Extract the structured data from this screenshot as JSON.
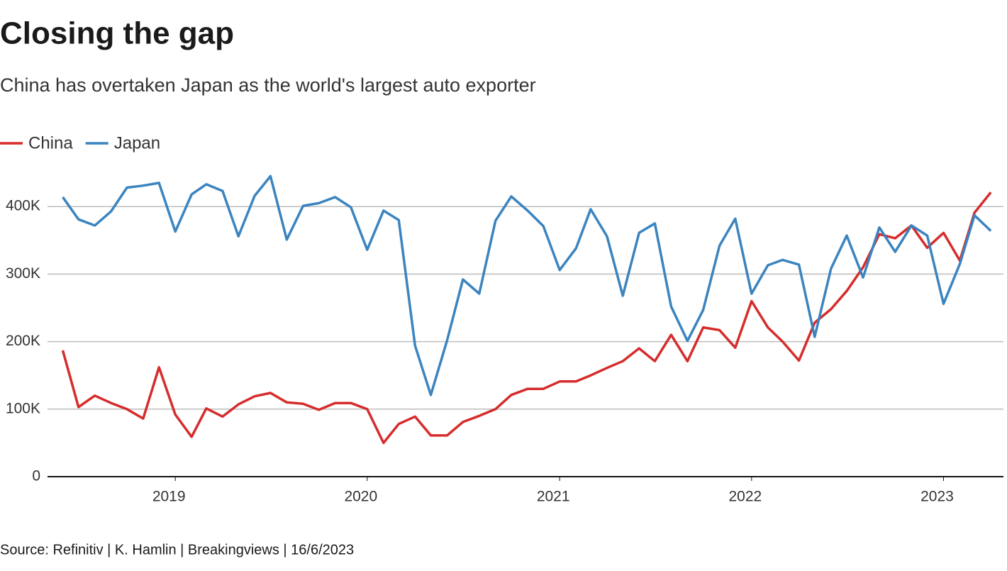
{
  "chart_data": {
    "type": "line",
    "title": "Closing the gap",
    "subtitle": "China has overtaken Japan as the world's largest auto exporter",
    "source": "Source: Refinitiv | K. Hamlin | Breakingviews | 16/6/2023",
    "x": [
      "2018-06",
      "2018-07",
      "2018-08",
      "2018-09",
      "2018-10",
      "2018-11",
      "2018-12",
      "2019-01",
      "2019-02",
      "2019-03",
      "2019-04",
      "2019-05",
      "2019-06",
      "2019-07",
      "2019-08",
      "2019-09",
      "2019-10",
      "2019-11",
      "2019-12",
      "2020-01",
      "2020-02",
      "2020-03",
      "2020-04",
      "2020-05",
      "2020-06",
      "2020-07",
      "2020-08",
      "2020-09",
      "2020-10",
      "2020-11",
      "2020-12",
      "2021-01",
      "2021-02",
      "2021-03",
      "2021-04",
      "2021-05",
      "2021-06",
      "2021-07",
      "2021-08",
      "2021-09",
      "2021-10",
      "2021-11",
      "2021-12",
      "2022-01",
      "2022-02",
      "2022-03",
      "2022-04",
      "2022-05",
      "2022-06",
      "2022-07",
      "2022-08",
      "2022-09",
      "2022-10",
      "2022-11",
      "2022-12",
      "2023-01",
      "2023-02",
      "2023-03",
      "2023-04"
    ],
    "series": [
      {
        "name": "China",
        "color": "#d62c2c",
        "values": [
          187000,
          103000,
          120000,
          109000,
          100000,
          86000,
          162000,
          92000,
          59000,
          101000,
          89000,
          107000,
          119000,
          124000,
          110000,
          108000,
          99000,
          109000,
          109000,
          100000,
          50000,
          78000,
          89000,
          61000,
          61000,
          81000,
          90000,
          100000,
          121000,
          130000,
          130000,
          141000,
          141000,
          150000,
          161000,
          171000,
          190000,
          171000,
          210000,
          171000,
          221000,
          217000,
          191000,
          260000,
          221000,
          200000,
          172000,
          228000,
          248000,
          275000,
          310000,
          359000,
          353000,
          372000,
          339000,
          361000,
          320000,
          391000,
          421000
        ]
      },
      {
        "name": "Japan",
        "color": "#3a84c0",
        "values": [
          414000,
          381000,
          372000,
          393000,
          428000,
          431000,
          435000,
          363000,
          418000,
          433000,
          423000,
          356000,
          416000,
          445000,
          351000,
          401000,
          405000,
          414000,
          399000,
          336000,
          394000,
          380000,
          194000,
          121000,
          202000,
          292000,
          271000,
          379000,
          415000,
          394000,
          371000,
          306000,
          338000,
          396000,
          356000,
          268000,
          361000,
          375000,
          252000,
          201000,
          247000,
          342000,
          382000,
          271000,
          313000,
          321000,
          314000,
          207000,
          308000,
          357000,
          295000,
          369000,
          333000,
          372000,
          357000,
          256000,
          315000,
          387000,
          364000
        ]
      }
    ],
    "xlim": [
      "2018-05-03",
      "2023-04-25"
    ],
    "xticks": [
      {
        "value": "2019-01",
        "label": "2019"
      },
      {
        "value": "2020-01",
        "label": "2020"
      },
      {
        "value": "2021-01",
        "label": "2021"
      },
      {
        "value": "2022-01",
        "label": "2022"
      },
      {
        "value": "2023-01",
        "label": "2023"
      }
    ],
    "ylim": [
      0,
      450000
    ],
    "yticks": [
      0,
      {
        "value": 100000,
        "label": "100K"
      },
      {
        "value": 200000,
        "label": "200K"
      },
      {
        "value": 300000,
        "label": "300K"
      },
      {
        "value": 400000,
        "label": "400K"
      }
    ],
    "grid": true,
    "legend": "top-left"
  }
}
